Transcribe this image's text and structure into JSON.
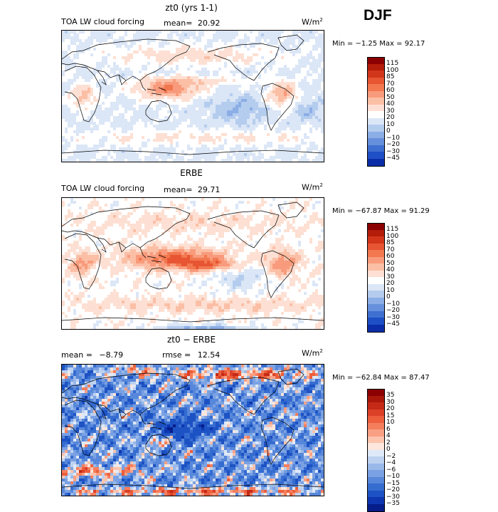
{
  "season": "DJF",
  "panels": [
    {
      "title": "zt0 (yrs 1-1)",
      "field_label": "TOA LW cloud forcing",
      "mean_label": "mean=",
      "mean_value": "20.92",
      "unit_base": "W/m",
      "unit_exp": "2",
      "minmax": "Min =  −1.25 Max =  92.17",
      "colorbar": {
        "labels": [
          "115",
          "100",
          "85",
          "70",
          "60",
          "50",
          "40",
          "30",
          "20",
          "10",
          "0",
          "−10",
          "−20",
          "−30",
          "−45"
        ],
        "colors": [
          "#8b0000",
          "#b31d0a",
          "#d2361a",
          "#e75532",
          "#f27850",
          "#f89b7c",
          "#fbbfa6",
          "#fde0d3",
          "#ffffff",
          "#dbe6f6",
          "#b4ccee",
          "#8caee6",
          "#6690dc",
          "#3f6fd1",
          "#1f4fc4",
          "#0b2ea8"
        ]
      },
      "map_mode": "model"
    },
    {
      "title": "ERBE",
      "field_label": "TOA LW cloud forcing",
      "mean_label": "mean=",
      "mean_value": "29.71",
      "unit_base": "W/m",
      "unit_exp": "2",
      "minmax": "Min = −67.87 Max =  91.29",
      "colorbar": {
        "labels": [
          "115",
          "100",
          "85",
          "70",
          "60",
          "50",
          "40",
          "30",
          "20",
          "10",
          "0",
          "−10",
          "−20",
          "−30",
          "−45"
        ],
        "colors": [
          "#8b0000",
          "#b31d0a",
          "#d2361a",
          "#e75532",
          "#f27850",
          "#f89b7c",
          "#fbbfa6",
          "#fde0d3",
          "#ffffff",
          "#dbe6f6",
          "#b4ccee",
          "#8caee6",
          "#6690dc",
          "#3f6fd1",
          "#1f4fc4",
          "#0b2ea8"
        ]
      },
      "map_mode": "obs"
    },
    {
      "title": "zt0 − ERBE",
      "mean_label": "mean =",
      "mean_value": "−8.79",
      "rmse_label": "rmse =",
      "rmse_value": "12.54",
      "unit_base": "W/m",
      "unit_exp": "2",
      "minmax": "Min = −62.84 Max =  87.47",
      "colorbar": {
        "labels": [
          "35",
          "30",
          "20",
          "15",
          "10",
          "6",
          "4",
          "2",
          "0",
          "−2",
          "−4",
          "−6",
          "−10",
          "−15",
          "−20",
          "−30",
          "−35"
        ],
        "colors": [
          "#8b0000",
          "#a8170a",
          "#c42a16",
          "#db4127",
          "#ec5e3c",
          "#f57e5c",
          "#f9a084",
          "#fcc3ad",
          "#fde6dc",
          "#dfe9f7",
          "#bdd1f0",
          "#9ab9e9",
          "#7aa1e3",
          "#5787da",
          "#356cd0",
          "#1d52c4",
          "#0e36b0",
          "#061d8a"
        ]
      },
      "map_mode": "diff"
    }
  ]
}
